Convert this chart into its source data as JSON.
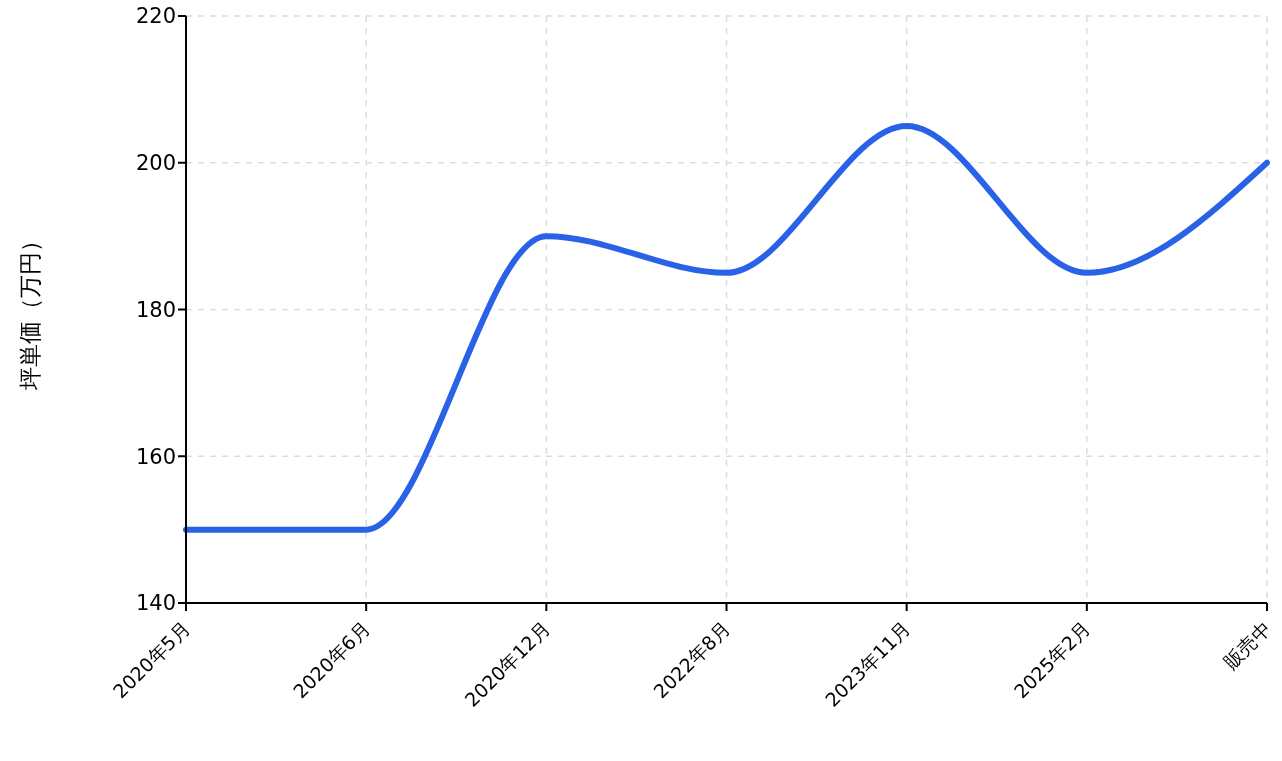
{
  "chart_data": {
    "type": "line",
    "ylabel": "坪単価（万円）",
    "categories": [
      "2020年5月",
      "2020年6月",
      "2020年12月",
      "2022年8月",
      "2023年11月",
      "2025年2月",
      "販売中"
    ],
    "series": [
      {
        "color": "#2962e6",
        "values": [
          150,
          150,
          190,
          185,
          205,
          185,
          200
        ]
      }
    ],
    "ylim": [
      140,
      220
    ],
    "yticks": [
      140,
      160,
      180,
      200,
      220
    ],
    "grid": true,
    "marker": "none",
    "line_style": "solid"
  }
}
